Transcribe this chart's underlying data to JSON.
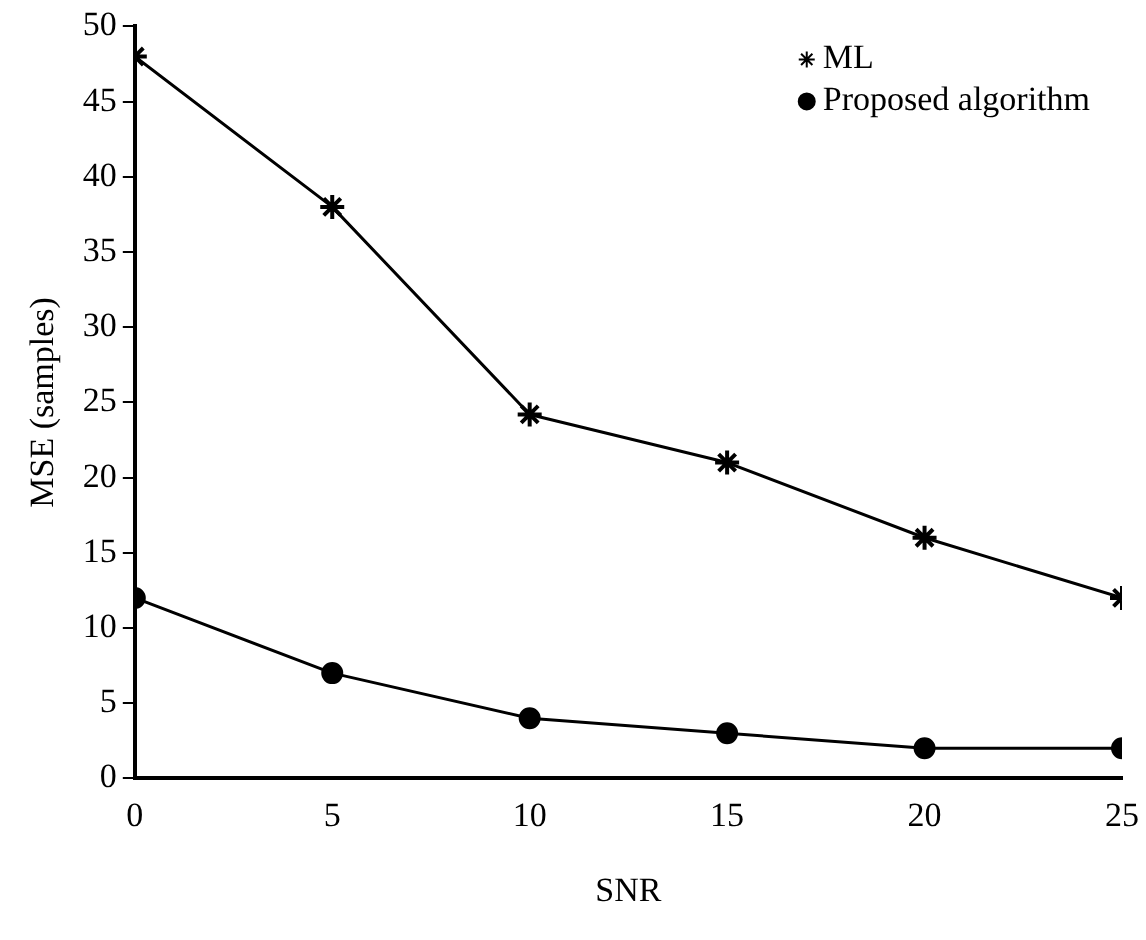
{
  "chart_data": {
    "type": "line",
    "xlabel": "SNR",
    "ylabel": "MSE (samples)",
    "x": [
      0,
      5,
      10,
      15,
      20,
      25
    ],
    "series": [
      {
        "name": "ML",
        "color": "#000000",
        "marker": "cross",
        "values": [
          48,
          38,
          24.2,
          21,
          16,
          12
        ]
      },
      {
        "name": "Proposed algorithm",
        "color": "#000000",
        "marker": "circle",
        "values": [
          12,
          7,
          4,
          3,
          2,
          2
        ]
      }
    ],
    "xlim": [
      0,
      25
    ],
    "xticks": [
      0,
      5,
      10,
      15,
      20,
      25
    ],
    "ylim": [
      0,
      50
    ],
    "yticks": [
      0,
      5,
      10,
      15,
      20,
      25,
      30,
      35,
      40,
      45,
      50
    ],
    "grid": false,
    "legend": "top right",
    "line_style": "solid"
  }
}
